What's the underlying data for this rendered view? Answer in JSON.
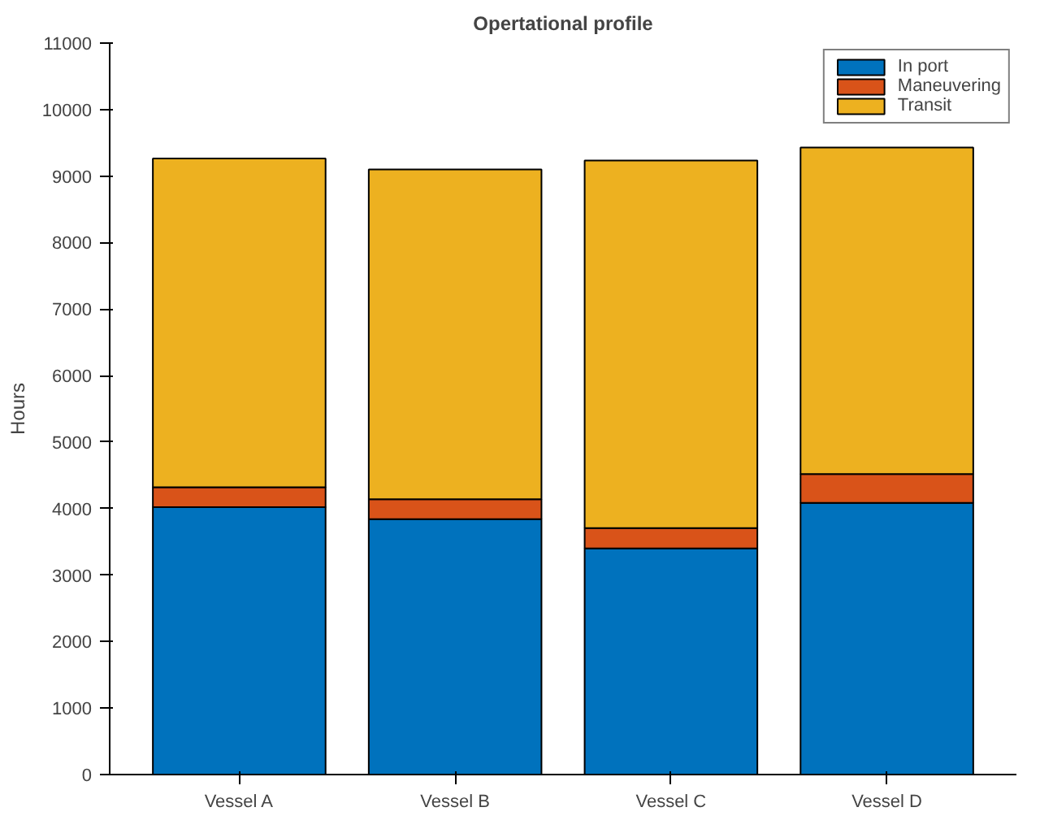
{
  "chart_data": {
    "type": "bar",
    "title": "Opertational profile",
    "ylabel": "Hours",
    "stacked": true,
    "categories": [
      "Vessel A",
      "Vessel B",
      "Vessel C",
      "Vessel D"
    ],
    "series": [
      {
        "name": "In port",
        "color": "#0072bd",
        "values": [
          4020,
          3840,
          3400,
          4085
        ]
      },
      {
        "name": "Maneuvering",
        "color": "#d95319",
        "values": [
          300,
          300,
          305,
          435
        ]
      },
      {
        "name": "Transit",
        "color": "#edb120",
        "values": [
          4945,
          4960,
          5530,
          4910
        ]
      }
    ],
    "ylim": [
      0,
      11000
    ],
    "yticks": [
      0,
      1000,
      2000,
      3000,
      4000,
      5000,
      6000,
      7000,
      8000,
      9000,
      10000,
      11000
    ],
    "grid": false,
    "legend": "top right"
  }
}
